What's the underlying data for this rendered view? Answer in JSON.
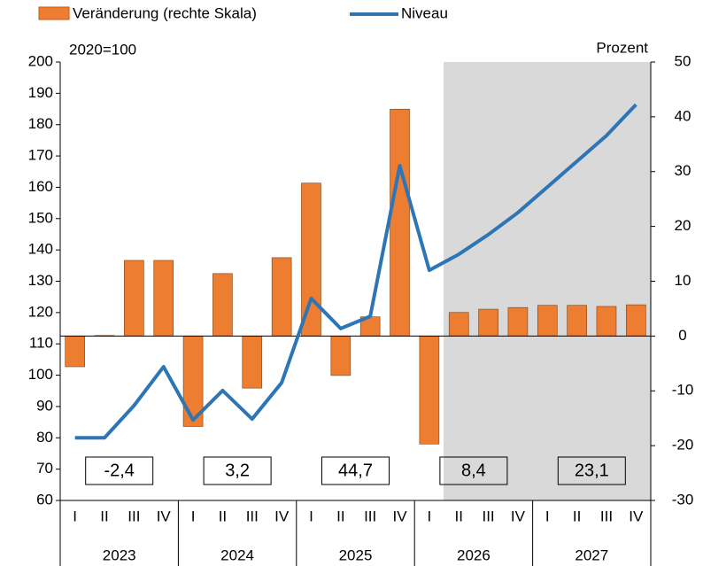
{
  "chart_data": {
    "type": "bar-line",
    "left_axis_label": "2020=100",
    "right_axis_label": "Prozent",
    "categories": [
      "I",
      "II",
      "III",
      "IV",
      "I",
      "II",
      "III",
      "IV",
      "I",
      "II",
      "III",
      "IV",
      "I",
      "II",
      "III",
      "IV",
      "I",
      "II",
      "III",
      "IV"
    ],
    "years": [
      "2023",
      "2024",
      "2025",
      "2026",
      "2027"
    ],
    "year_annotations": [
      "-2,4",
      "3,2",
      "44,7",
      "8,4",
      "23,1"
    ],
    "series": [
      {
        "name": "Veränderung (rechte Skala)",
        "type": "bar",
        "axis": "y2",
        "color": "#ed7d31",
        "values": [
          -5.6,
          0.1,
          13.8,
          13.8,
          -16.5,
          11.4,
          -9.5,
          14.3,
          27.9,
          -7.2,
          3.5,
          41.4,
          -19.7,
          4.3,
          4.9,
          5.2,
          5.6,
          5.6,
          5.4,
          5.7
        ]
      },
      {
        "name": "Niveau",
        "type": "line",
        "axis": "y",
        "color": "#2e75b6",
        "values": [
          80,
          80,
          90.3,
          102.7,
          85.7,
          95.1,
          86,
          97.6,
          124.5,
          114.9,
          118.8,
          166.9,
          133.5,
          138.6,
          144.9,
          151.9,
          160.1,
          168.3,
          176.5,
          186.4
        ]
      }
    ],
    "ylim": [
      60,
      200
    ],
    "yticks": [
      60,
      70,
      80,
      90,
      100,
      110,
      120,
      130,
      140,
      150,
      160,
      170,
      180,
      190,
      200
    ],
    "y2lim": [
      -30,
      50
    ],
    "y2ticks": [
      -30,
      -20,
      -10,
      0,
      10,
      20,
      30,
      40,
      50
    ]
  }
}
